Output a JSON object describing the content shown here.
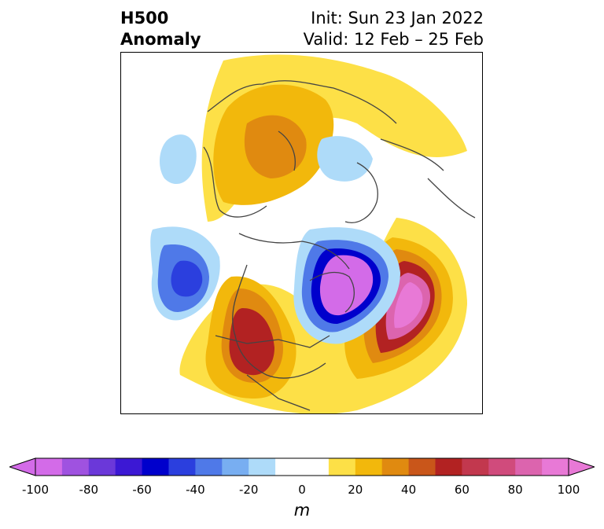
{
  "title": {
    "left_line1": "H500",
    "left_line2": "Anomaly",
    "right_line1": "Init: Sun 23 Jan 2022",
    "right_line2": "Valid: 12 Feb – 25 Feb"
  },
  "colorbar": {
    "unit": "m",
    "ticks": [
      "-100",
      "-80",
      "-60",
      "-40",
      "-20",
      "0",
      "20",
      "40",
      "60",
      "80",
      "100"
    ],
    "colors": [
      "#d36be8",
      "#9f52e0",
      "#6b38d9",
      "#3c18d4",
      "#0000cc",
      "#2b3fde",
      "#4f79e8",
      "#78aef1",
      "#aedbf9",
      "#ffffff",
      "#ffffff",
      "#fde047",
      "#f2b80c",
      "#e08a10",
      "#c9561a",
      "#b22222",
      "#c2384e",
      "#d04b7c",
      "#dc64ae",
      "#e879d6"
    ]
  },
  "map": {
    "projection": "north-polar-stereographic",
    "field": "500 hPa geopotential height anomaly",
    "coastline_color": "#444444"
  }
}
